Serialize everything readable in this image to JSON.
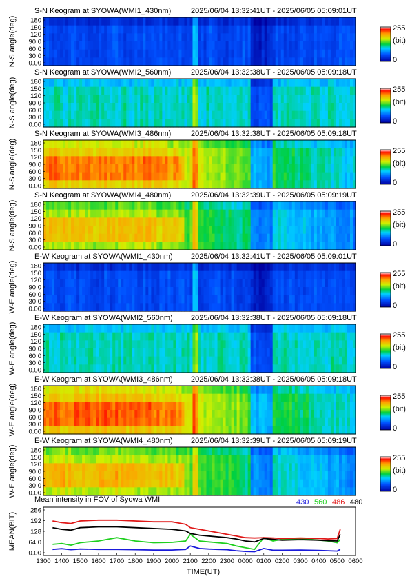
{
  "keograms": [
    {
      "label": "S-N Keogram at SYOWA(WMI1_430nm)",
      "time_range": "2025/06/04 13:32:41UT - 2025/06/05 05:09:01UT",
      "ylabel": "N-S angle(deg)",
      "type": "heatmap",
      "yticks": [
        "180",
        "150",
        "120",
        "90.0",
        "60.0",
        "30.0",
        "0.00"
      ],
      "colorbar": {
        "max": "255",
        "unit": "(bit)",
        "min": "0"
      },
      "mean_level": 0.18,
      "bright_until": "",
      "band_color_wavelength": "430nm"
    },
    {
      "label": "S-N Keogram at SYOWA(WMI2_560nm)",
      "time_range": "2025/06/04 13:32:38UT - 2025/06/05 05:09:18UT",
      "ylabel": "N-S angle(deg)",
      "type": "heatmap",
      "yticks": [
        "180",
        "150",
        "120",
        "90.0",
        "60.0",
        "30.0",
        "0.00"
      ],
      "colorbar": {
        "max": "255",
        "unit": "(bit)",
        "min": "0"
      },
      "mean_level": 0.42,
      "band_color_wavelength": "560nm"
    },
    {
      "label": "S-N Keogram at SYOWA(WMI3_486nm)",
      "time_range": "2025/06/04 13:32:38UT - 2025/06/05 05:09:18UT",
      "ylabel": "N-S angle(deg)",
      "type": "heatmap",
      "yticks": [
        "180",
        "150",
        "120",
        "90.0",
        "60.0",
        "30.0",
        "0.00"
      ],
      "colorbar": {
        "max": "255",
        "unit": "(bit)",
        "min": "0"
      },
      "mean_level": 0.72,
      "band_color_wavelength": "486nm"
    },
    {
      "label": "S-N Keogram at SYOWA(WMI4_480nm)",
      "time_range": "2025/06/04 13:32:39UT - 2025/06/05 05:09:19UT",
      "ylabel": "N-S angle(deg)",
      "type": "heatmap",
      "yticks": [
        "180",
        "150",
        "120",
        "90.0",
        "60.0",
        "30.0",
        "0.00"
      ],
      "colorbar": {
        "max": "255",
        "unit": "(bit)",
        "min": "0"
      },
      "mean_level": 0.62,
      "band_color_wavelength": "480nm"
    },
    {
      "label": "E-W Keogram at SYOWA(WMI1_430nm)",
      "time_range": "2025/06/04 13:32:41UT - 2025/06/05 05:09:01UT",
      "ylabel": "W-E angle(deg)",
      "type": "heatmap",
      "yticks": [
        "180",
        "150",
        "120",
        "90.0",
        "60.0",
        "30.0",
        "0.00"
      ],
      "colorbar": {
        "max": "255",
        "unit": "(bit)",
        "min": "0"
      },
      "mean_level": 0.18,
      "band_color_wavelength": "430nm"
    },
    {
      "label": "E-W Keogram at SYOWA(WMI2_560nm)",
      "time_range": "2025/06/04 13:32:38UT - 2025/06/05 05:09:18UT",
      "ylabel": "W-E angle(deg)",
      "type": "heatmap",
      "yticks": [
        "180",
        "150",
        "120",
        "90.0",
        "60.0",
        "30.0",
        "0.00"
      ],
      "colorbar": {
        "max": "255",
        "unit": "(bit)",
        "min": "0"
      },
      "mean_level": 0.42,
      "band_color_wavelength": "560nm"
    },
    {
      "label": "E-W Keogram at SYOWA(WMI3_486nm)",
      "time_range": "2025/06/04 13:32:38UT - 2025/06/05 05:09:18UT",
      "ylabel": "W-E angle(deg)",
      "type": "heatmap",
      "yticks": [
        "180",
        "150",
        "120",
        "90.0",
        "60.0",
        "30.0",
        "0.00"
      ],
      "colorbar": {
        "max": "255",
        "unit": "(bit)",
        "min": "0"
      },
      "mean_level": 0.74,
      "band_color_wavelength": "486nm"
    },
    {
      "label": "E-W Keogram at SYOWA(WMI4_480nm)",
      "time_range": "2025/06/04 13:32:39UT - 2025/06/05 05:09:19UT",
      "ylabel": "W-E angle(deg)",
      "type": "heatmap",
      "yticks": [
        "180",
        "150",
        "120",
        "90.0",
        "60.0",
        "30.0",
        "0.00"
      ],
      "colorbar": {
        "max": "255",
        "unit": "(bit)",
        "min": "0"
      },
      "mean_level": 0.64,
      "band_color_wavelength": "480nm"
    }
  ],
  "mean_panel": {
    "title": "Mean intensity in FOV of Syowa WMI",
    "ylabel": "MEAN(BIT)",
    "xlabel": "TIME(UT)",
    "yticks": [
      "256",
      "192",
      "128",
      "64.0",
      "0.00"
    ],
    "xticks": [
      "1300",
      "1400",
      "1500",
      "1600",
      "1700",
      "1800",
      "1900",
      "2000",
      "2100",
      "2200",
      "2300",
      "0000",
      "0100",
      "0200",
      "0300",
      "0400",
      "0500",
      "0600"
    ],
    "legend": [
      {
        "name": "430",
        "color": "#1a1adb"
      },
      {
        "name": "560",
        "color": "#1ecf1e"
      },
      {
        "name": "486",
        "color": "#e01818"
      },
      {
        "name": "480",
        "color": "#000000"
      }
    ]
  },
  "chart_data": {
    "type": "line",
    "title": "Mean intensity in FOV of Syowa WMI",
    "xlabel": "TIME(UT)",
    "ylabel": "MEAN(BIT)",
    "ylim": [
      0,
      256
    ],
    "x": [
      "1330",
      "1400",
      "1430",
      "1500",
      "1600",
      "1700",
      "1800",
      "1900",
      "2000",
      "2045",
      "2100",
      "2130",
      "2200",
      "2230",
      "2300",
      "2330",
      "0000",
      "0030",
      "0100",
      "0130",
      "0200",
      "0300",
      "0400",
      "0430",
      "0500",
      "0510"
    ],
    "series": [
      {
        "name": "430",
        "color": "#1a1adb",
        "values": [
          20,
          24,
          18,
          22,
          20,
          20,
          18,
          16,
          16,
          20,
          40,
          25,
          22,
          20,
          18,
          12,
          8,
          6,
          25,
          15,
          15,
          16,
          14,
          12,
          10,
          20
        ]
      },
      {
        "name": "560",
        "color": "#1ecf1e",
        "values": [
          50,
          55,
          45,
          60,
          70,
          90,
          70,
          60,
          62,
          70,
          110,
          70,
          65,
          60,
          55,
          40,
          30,
          20,
          90,
          70,
          80,
          85,
          75,
          70,
          60,
          80
        ]
      },
      {
        "name": "486",
        "color": "#e01818",
        "values": [
          190,
          180,
          175,
          190,
          195,
          195,
          190,
          185,
          185,
          170,
          150,
          140,
          130,
          120,
          110,
          100,
          90,
          88,
          90,
          88,
          85,
          88,
          85,
          82,
          85,
          140
        ]
      },
      {
        "name": "480",
        "color": "#000000",
        "values": [
          150,
          140,
          135,
          150,
          155,
          155,
          150,
          145,
          140,
          130,
          115,
          105,
          100,
          95,
          90,
          82,
          70,
          65,
          85,
          80,
          75,
          78,
          75,
          72,
          70,
          110
        ]
      }
    ]
  }
}
